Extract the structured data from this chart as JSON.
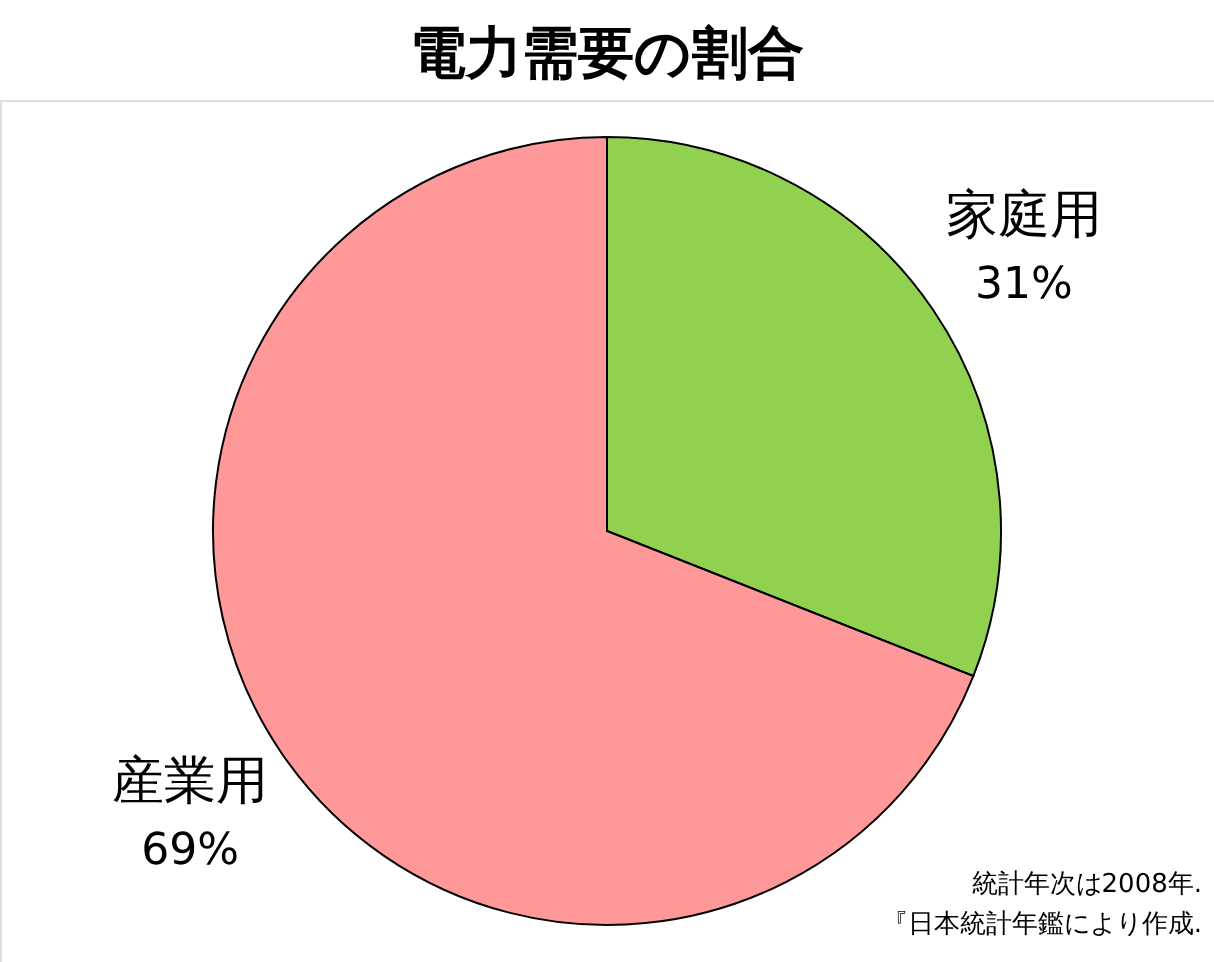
{
  "chart_data": {
    "type": "pie",
    "title": "電力需要の割合",
    "categories": [
      "家庭用",
      "産業用"
    ],
    "values": [
      31,
      69
    ],
    "colors": [
      "#92d050",
      "#ff9999"
    ],
    "value_labels": [
      "31%",
      "69%"
    ],
    "legend": false,
    "annotations": [
      "統計年次は2008年.",
      "『日本統計年鑑により作成."
    ]
  }
}
